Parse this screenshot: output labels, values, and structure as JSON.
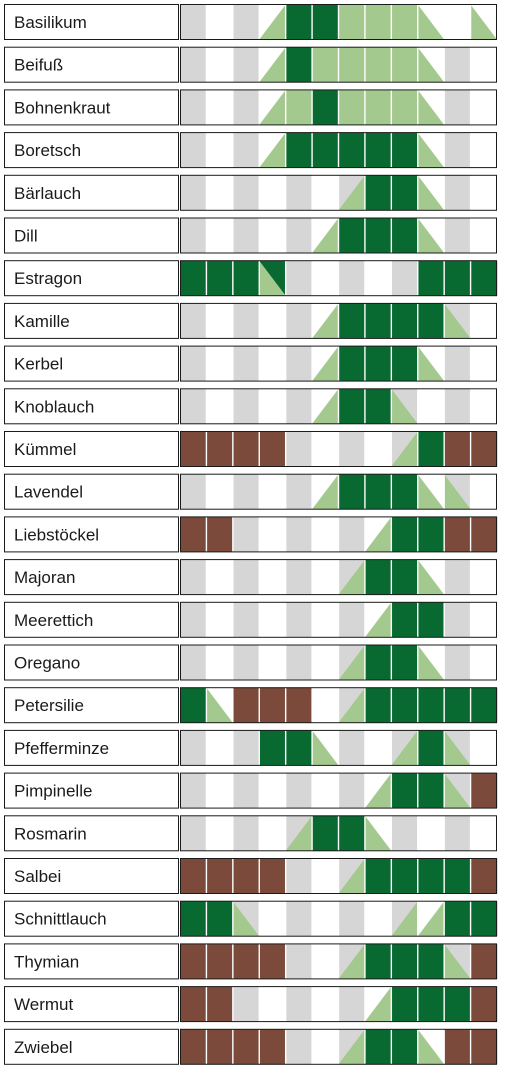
{
  "chart_data": {
    "type": "heatmap",
    "title": "",
    "columns": 12,
    "colors": {
      "empty": "#ffffff",
      "shade": "#d6d6d6",
      "harvest": "#086a31",
      "light": "#a4c98f",
      "dormant": "#7b4a3a",
      "border": "#1a1a1a"
    },
    "legend": {
      "e": "empty",
      "g": "shade",
      "H": "harvest",
      "L": "light",
      "B": "dormant",
      "u": "rising-light",
      "d": "falling-light",
      "D": "falling-light-on-dark"
    },
    "rows": [
      {
        "name": "Basilikum",
        "cells": [
          "g",
          "e",
          "g",
          "u",
          "H",
          "H",
          "L",
          "L",
          "L",
          "d",
          "e",
          "d"
        ]
      },
      {
        "name": "Beifuß",
        "cells": [
          "g",
          "e",
          "g",
          "u",
          "H",
          "L",
          "L",
          "L",
          "L",
          "d",
          "g",
          "e"
        ]
      },
      {
        "name": "Bohnenkraut",
        "cells": [
          "g",
          "e",
          "g",
          "u",
          "L",
          "H",
          "L",
          "L",
          "L",
          "d",
          "g",
          "e"
        ]
      },
      {
        "name": "Boretsch",
        "cells": [
          "g",
          "e",
          "g",
          "u",
          "H",
          "H",
          "H",
          "H",
          "H",
          "d",
          "g",
          "e"
        ]
      },
      {
        "name": "Bärlauch",
        "cells": [
          "g",
          "e",
          "g",
          "e",
          "g",
          "e",
          "u",
          "H",
          "H",
          "d",
          "g",
          "e"
        ]
      },
      {
        "name": "Dill",
        "cells": [
          "g",
          "e",
          "g",
          "e",
          "g",
          "u",
          "H",
          "H",
          "H",
          "d",
          "g",
          "e"
        ]
      },
      {
        "name": "Estragon",
        "cells": [
          "H",
          "H",
          "H",
          "D",
          "g",
          "e",
          "g",
          "e",
          "g",
          "H",
          "H",
          "H"
        ]
      },
      {
        "name": "Kamille",
        "cells": [
          "g",
          "e",
          "g",
          "e",
          "g",
          "u",
          "H",
          "H",
          "H",
          "H",
          "d",
          "e"
        ]
      },
      {
        "name": "Kerbel",
        "cells": [
          "g",
          "e",
          "g",
          "e",
          "g",
          "u",
          "H",
          "H",
          "H",
          "d",
          "g",
          "e"
        ]
      },
      {
        "name": "Knoblauch",
        "cells": [
          "g",
          "e",
          "g",
          "e",
          "g",
          "u",
          "H",
          "H",
          "d",
          "e",
          "g",
          "e"
        ]
      },
      {
        "name": "Kümmel",
        "cells": [
          "B",
          "B",
          "B",
          "B",
          "g",
          "e",
          "g",
          "e",
          "u",
          "H",
          "B",
          "B"
        ]
      },
      {
        "name": "Lavendel",
        "cells": [
          "g",
          "e",
          "g",
          "e",
          "g",
          "u",
          "H",
          "H",
          "H",
          "d",
          "d",
          "e"
        ]
      },
      {
        "name": "Liebstöckel",
        "cells": [
          "B",
          "B",
          "g",
          "e",
          "g",
          "e",
          "g",
          "u",
          "H",
          "H",
          "B",
          "B"
        ]
      },
      {
        "name": "Majoran",
        "cells": [
          "g",
          "e",
          "g",
          "e",
          "g",
          "e",
          "u",
          "H",
          "H",
          "d",
          "g",
          "e"
        ]
      },
      {
        "name": "Meerettich",
        "cells": [
          "g",
          "e",
          "g",
          "e",
          "g",
          "e",
          "g",
          "u",
          "H",
          "H",
          "g",
          "e"
        ]
      },
      {
        "name": "Oregano",
        "cells": [
          "g",
          "e",
          "g",
          "e",
          "g",
          "e",
          "u",
          "H",
          "H",
          "d",
          "g",
          "e"
        ]
      },
      {
        "name": "Petersilie",
        "cells": [
          "H",
          "d",
          "B",
          "B",
          "B",
          "e",
          "u",
          "H",
          "H",
          "H",
          "H",
          "H"
        ]
      },
      {
        "name": "Pfefferminze",
        "cells": [
          "g",
          "e",
          "g",
          "H",
          "H",
          "d",
          "g",
          "e",
          "u",
          "H",
          "d",
          "e"
        ]
      },
      {
        "name": "Pimpinelle",
        "cells": [
          "g",
          "e",
          "g",
          "e",
          "g",
          "e",
          "g",
          "u",
          "H",
          "H",
          "d",
          "B"
        ]
      },
      {
        "name": "Rosmarin",
        "cells": [
          "g",
          "e",
          "g",
          "e",
          "u",
          "H",
          "H",
          "d",
          "g",
          "e",
          "g",
          "e"
        ]
      },
      {
        "name": "Salbei",
        "cells": [
          "B",
          "B",
          "B",
          "B",
          "g",
          "e",
          "u",
          "H",
          "H",
          "H",
          "H",
          "B"
        ]
      },
      {
        "name": "Schnittlauch",
        "cells": [
          "H",
          "H",
          "d",
          "e",
          "g",
          "e",
          "g",
          "e",
          "u",
          "u",
          "H",
          "H"
        ]
      },
      {
        "name": "Thymian",
        "cells": [
          "B",
          "B",
          "B",
          "B",
          "g",
          "e",
          "u",
          "H",
          "H",
          "H",
          "d",
          "B"
        ]
      },
      {
        "name": "Wermut",
        "cells": [
          "B",
          "B",
          "g",
          "e",
          "g",
          "e",
          "g",
          "u",
          "H",
          "H",
          "H",
          "B"
        ]
      },
      {
        "name": "Zwiebel",
        "cells": [
          "B",
          "B",
          "B",
          "B",
          "g",
          "e",
          "u",
          "H",
          "H",
          "d",
          "B",
          "B"
        ]
      }
    ]
  }
}
